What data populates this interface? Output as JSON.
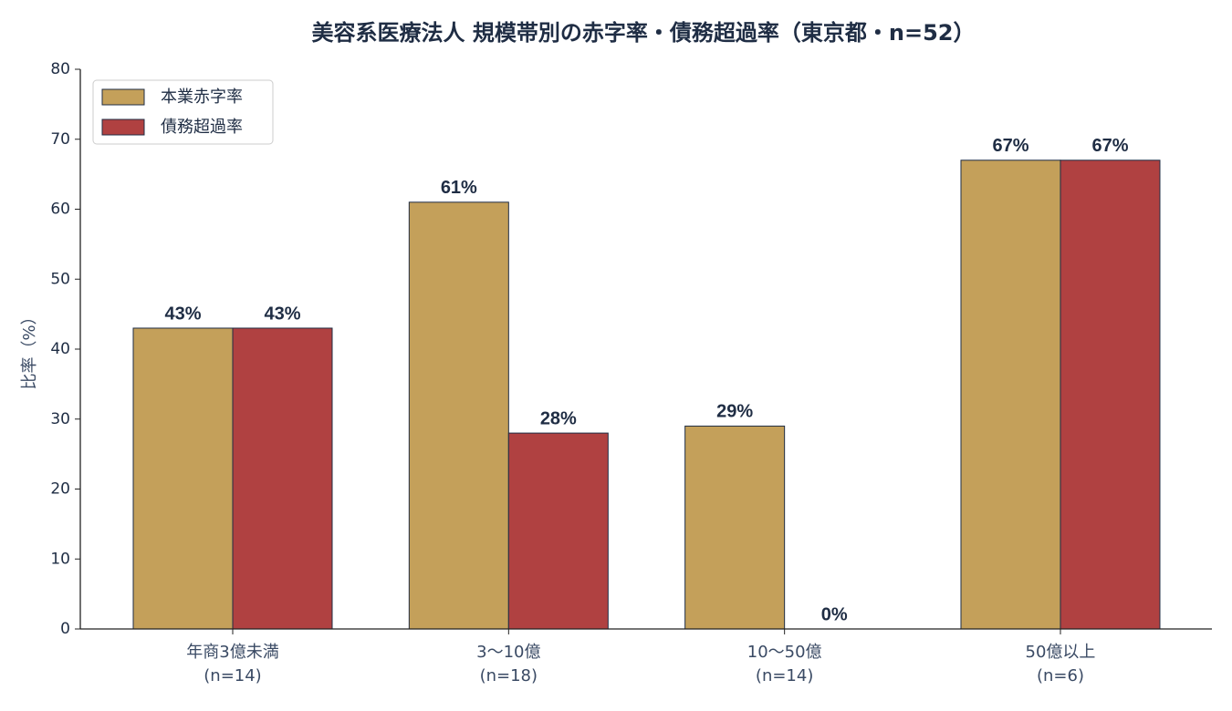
{
  "chart_data": {
    "type": "bar",
    "title": "美容系医療法人 規模帯別の赤字率・債務超過率（東京都・n=52）",
    "ylabel": "比率（%）",
    "categories": [
      [
        "年商3億未満",
        "(n=14)"
      ],
      [
        "3〜10億",
        "(n=18)"
      ],
      [
        "10〜50億",
        "(n=14)"
      ],
      [
        "50億以上",
        "(n=6)"
      ]
    ],
    "series": [
      {
        "name": "本業赤字率",
        "color": "#c4a05a",
        "values": [
          43,
          61,
          29,
          67
        ],
        "value_labels": [
          "43%",
          "61%",
          "29%",
          "67%"
        ]
      },
      {
        "name": "債務超過率",
        "color": "#b04141",
        "values": [
          43,
          28,
          0,
          67
        ],
        "value_labels": [
          "43%",
          "28%",
          "0%",
          "67%"
        ]
      }
    ],
    "ylim": [
      0,
      80
    ],
    "yticks": [
      0,
      10,
      20,
      30,
      40,
      50,
      60,
      70,
      80
    ],
    "legend": "upper left"
  }
}
